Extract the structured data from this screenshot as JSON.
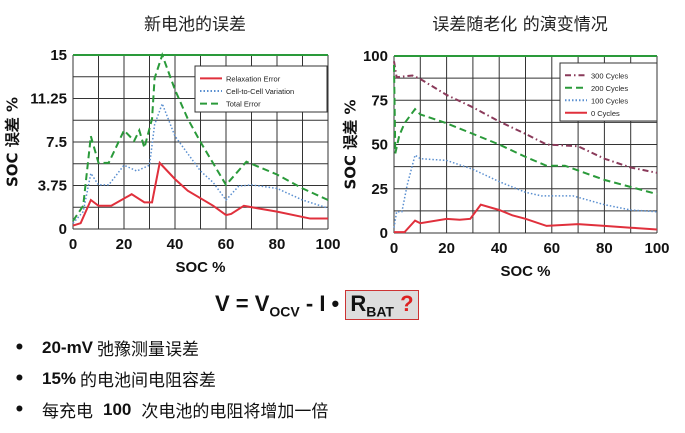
{
  "chart_data": [
    {
      "type": "line",
      "title": "新电池的误差",
      "xlabel": "SOC %",
      "ylabel": "SOC 误差 %",
      "xlim": [
        0,
        100
      ],
      "ylim": [
        0,
        15
      ],
      "xticks": [
        0,
        20,
        40,
        60,
        80,
        100
      ],
      "yticks": [
        "0",
        "3.75",
        "7.5",
        "11.25",
        "15"
      ],
      "ytick_values": [
        0,
        3.75,
        7.5,
        11.25,
        15
      ],
      "grid": true,
      "ygrid_step": 1.875,
      "legend": "top-right",
      "series": [
        {
          "name": "Relaxation Error",
          "color": "#e0303c",
          "style": "solid",
          "points": [
            [
              0,
              0.3
            ],
            [
              3,
              0.5
            ],
            [
              7,
              2.5
            ],
            [
              10,
              2
            ],
            [
              15,
              2
            ],
            [
              23,
              3
            ],
            [
              28,
              2.3
            ],
            [
              31,
              2.3
            ],
            [
              34,
              5.7
            ],
            [
              40,
              4.3
            ],
            [
              45,
              3.3
            ],
            [
              55,
              2
            ],
            [
              60,
              1.2
            ],
            [
              62,
              1.3
            ],
            [
              67,
              2
            ],
            [
              72,
              1.8
            ],
            [
              80,
              1.5
            ],
            [
              93,
              0.9
            ],
            [
              100,
              0.9
            ]
          ]
        },
        {
          "name": "Cell-to-Cell Variation",
          "color": "#5a8fd0",
          "style": "dotted",
          "points": [
            [
              0,
              0.5
            ],
            [
              4,
              1.5
            ],
            [
              7,
              4.8
            ],
            [
              10,
              3.8
            ],
            [
              14,
              3.8
            ],
            [
              20,
              5.5
            ],
            [
              25,
              5
            ],
            [
              30,
              5.5
            ],
            [
              32,
              9
            ],
            [
              35,
              10.8
            ],
            [
              40,
              8
            ],
            [
              45,
              6.5
            ],
            [
              50,
              5
            ],
            [
              55,
              4
            ],
            [
              60,
              2.5
            ],
            [
              65,
              3.7
            ],
            [
              70,
              3.8
            ],
            [
              80,
              3.5
            ],
            [
              90,
              2.5
            ],
            [
              100,
              1.8
            ]
          ]
        },
        {
          "name": "Total Error",
          "color": "#2a9a3a",
          "style": "dashed",
          "points": [
            [
              0,
              0.7
            ],
            [
              4,
              2
            ],
            [
              7,
              8
            ],
            [
              10,
              5.7
            ],
            [
              14,
              5.7
            ],
            [
              20,
              8.5
            ],
            [
              24,
              7.6
            ],
            [
              26,
              8.5
            ],
            [
              28,
              7
            ],
            [
              31,
              9.5
            ],
            [
              32,
              13
            ],
            [
              35,
              15.5
            ],
            [
              40,
              12
            ],
            [
              45,
              9.5
            ],
            [
              50,
              7.5
            ],
            [
              60,
              3.8
            ],
            [
              68,
              5.8
            ],
            [
              80,
              4.7
            ],
            [
              90,
              3.5
            ],
            [
              100,
              2.5
            ]
          ]
        }
      ]
    },
    {
      "type": "line",
      "title": "误差随老化 的演变情况",
      "xlabel": "SOC %",
      "ylabel": "SOC 误差 %",
      "xlim": [
        0,
        100
      ],
      "ylim": [
        0,
        100
      ],
      "xticks": [
        0,
        20,
        40,
        60,
        80,
        100
      ],
      "yticks": [
        "0",
        "25",
        "50",
        "75",
        "100"
      ],
      "ytick_values": [
        0,
        25,
        50,
        75,
        100
      ],
      "grid": true,
      "ygrid_step": 12.5,
      "legend": "top-right",
      "series": [
        {
          "name": "300 Cycles",
          "color": "#8a3a5a",
          "style": "dashdot",
          "points": [
            [
              0,
              97
            ],
            [
              1,
              88
            ],
            [
              7,
              89
            ],
            [
              10,
              87
            ],
            [
              20,
              78
            ],
            [
              30,
              71
            ],
            [
              40,
              63
            ],
            [
              50,
              56
            ],
            [
              58,
              50
            ],
            [
              70,
              49
            ],
            [
              80,
              42
            ],
            [
              90,
              37
            ],
            [
              100,
              34
            ]
          ]
        },
        {
          "name": "200 Cycles",
          "color": "#2a9a3a",
          "style": "dashed",
          "points": [
            [
              0,
              95
            ],
            [
              0.5,
              45
            ],
            [
              2,
              55
            ],
            [
              4,
              62
            ],
            [
              8,
              70
            ],
            [
              10,
              67
            ],
            [
              20,
              62
            ],
            [
              30,
              56
            ],
            [
              40,
              50
            ],
            [
              50,
              43
            ],
            [
              58,
              38
            ],
            [
              65,
              38
            ],
            [
              80,
              30
            ],
            [
              90,
              26
            ],
            [
              100,
              22
            ]
          ]
        },
        {
          "name": "100 Cycles",
          "color": "#5a8fd0",
          "style": "dotted",
          "points": [
            [
              0,
              3
            ],
            [
              1,
              12
            ],
            [
              3,
              12
            ],
            [
              5,
              27
            ],
            [
              8,
              44
            ],
            [
              10,
              42
            ],
            [
              20,
              41
            ],
            [
              30,
              36
            ],
            [
              40,
              29
            ],
            [
              50,
              23
            ],
            [
              56,
              21
            ],
            [
              68,
              21
            ],
            [
              80,
              16
            ],
            [
              90,
              13
            ],
            [
              100,
              12
            ]
          ]
        },
        {
          "name": "0 Cycles",
          "color": "#e0303c",
          "style": "solid",
          "points": [
            [
              0,
              0.5
            ],
            [
              4,
              0.5
            ],
            [
              8,
              7
            ],
            [
              10,
              5.5
            ],
            [
              20,
              8
            ],
            [
              25,
              7.5
            ],
            [
              29,
              8
            ],
            [
              33,
              16
            ],
            [
              40,
              13
            ],
            [
              45,
              10
            ],
            [
              50,
              8
            ],
            [
              58,
              4
            ],
            [
              70,
              5
            ],
            [
              80,
              4
            ],
            [
              90,
              3
            ],
            [
              100,
              2
            ]
          ]
        }
      ]
    }
  ],
  "equation": {
    "v": "V = V",
    "ocv": "OCV",
    "mid": " - I • ",
    "r": "R",
    "bat": "BAT",
    "q": "?"
  },
  "bullets": [
    {
      "bold": "20-mV",
      "text": "弛豫测量误差"
    },
    {
      "bold": "15%",
      "text": "的电池间电阻容差"
    },
    {
      "pre": "每充电",
      "bold": "100",
      "text": "次电池的电阻将增加一倍"
    }
  ],
  "bullet_glyph": "•"
}
